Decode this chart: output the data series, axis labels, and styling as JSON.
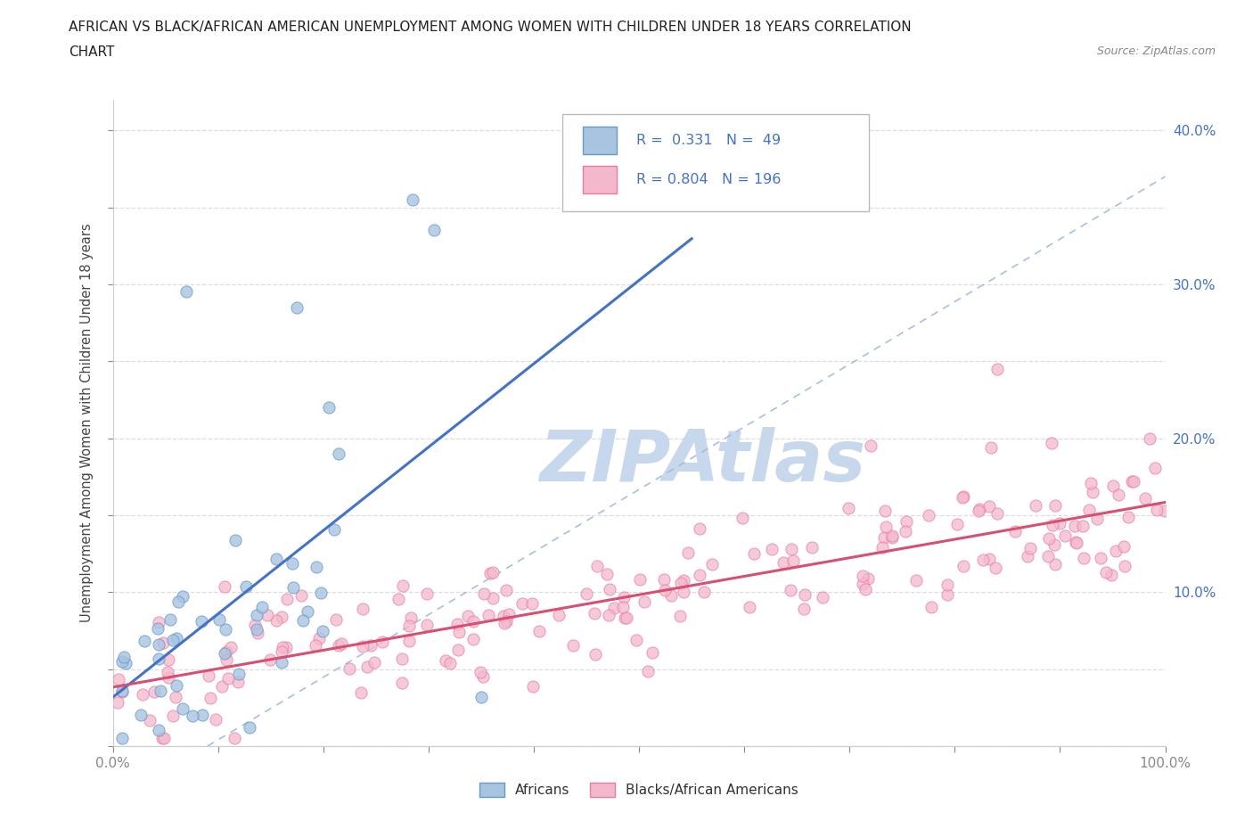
{
  "title_line1": "AFRICAN VS BLACK/AFRICAN AMERICAN UNEMPLOYMENT AMONG WOMEN WITH CHILDREN UNDER 18 YEARS CORRELATION",
  "title_line2": "CHART",
  "source": "Source: ZipAtlas.com",
  "ylabel": "Unemployment Among Women with Children Under 18 years",
  "xlim": [
    0.0,
    1.0
  ],
  "ylim": [
    0.0,
    0.42
  ],
  "xtick_vals": [
    0.0,
    0.1,
    0.2,
    0.3,
    0.4,
    0.5,
    0.6,
    0.7,
    0.8,
    0.9,
    1.0
  ],
  "xticklabels": [
    "0.0%",
    "",
    "",
    "",
    "",
    "",
    "",
    "",
    "",
    "",
    "100.0%"
  ],
  "ytick_vals": [
    0.0,
    0.05,
    0.1,
    0.15,
    0.2,
    0.25,
    0.3,
    0.35,
    0.4
  ],
  "yticklabels_right": [
    "",
    "",
    "10.0%",
    "",
    "20.0%",
    "",
    "30.0%",
    "",
    "40.0%"
  ],
  "african_color": "#a8c4e0",
  "african_edge": "#6699cc",
  "black_color": "#f4b8cc",
  "black_edge": "#e87ca0",
  "african_R": 0.331,
  "african_N": 49,
  "black_R": 0.804,
  "black_N": 196,
  "legend_label_african": "Africans",
  "legend_label_black": "Blacks/African Americans",
  "trend_color_african": "#4472c4",
  "trend_color_black": "#d94f70",
  "dash_color": "#a0b8d8",
  "watermark_color": "#c8d8ec",
  "right_tick_color": "#4472c4",
  "title_color": "#222222",
  "source_color": "#888888",
  "ylabel_color": "#444444",
  "grid_color": "#dddddd",
  "spine_color": "#cccccc"
}
